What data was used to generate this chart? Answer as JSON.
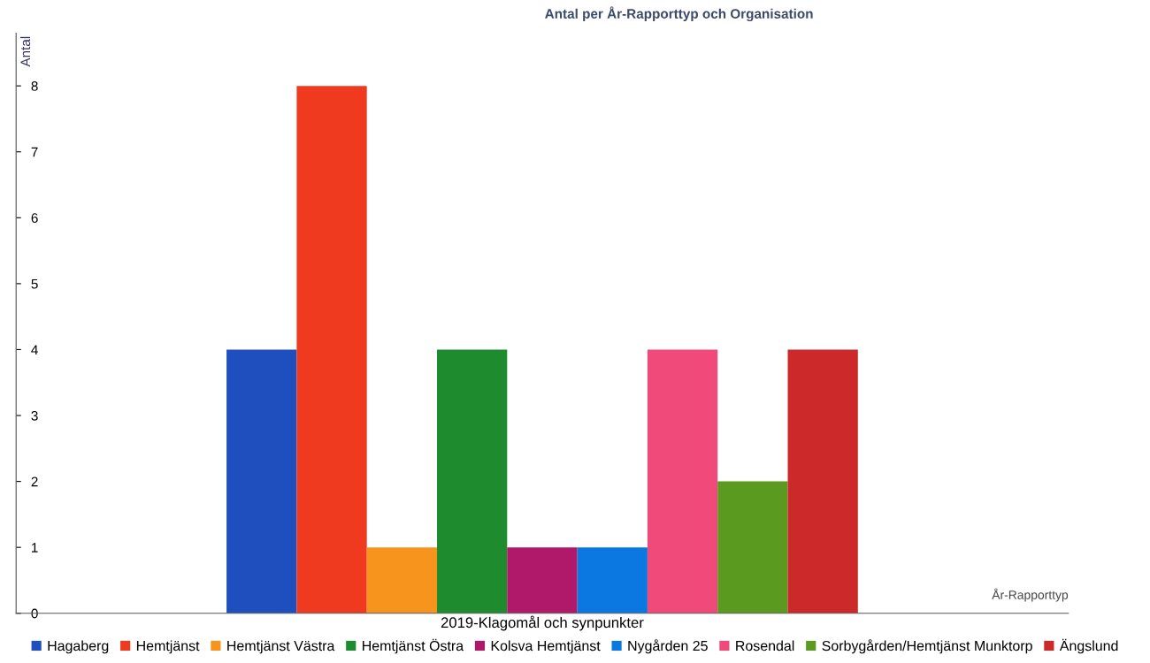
{
  "chart_data": {
    "type": "bar",
    "title": "Antal per År-Rapporttyp och Organisation",
    "xlabel": "År-Rapporttyp",
    "ylabel": "Antal",
    "categories": [
      "2019-Klagomål och synpunkter"
    ],
    "series": [
      {
        "name": "Hagaberg",
        "color": "#1f4fbf",
        "values": [
          4
        ]
      },
      {
        "name": "Hemtjänst",
        "color": "#f03a1f",
        "values": [
          8
        ]
      },
      {
        "name": "Hemtjänst Västra",
        "color": "#f7941d",
        "values": [
          1
        ]
      },
      {
        "name": "Hemtjänst Östra",
        "color": "#1e8c2e",
        "values": [
          4
        ]
      },
      {
        "name": "Kolsva Hemtjänst",
        "color": "#b0186a",
        "values": [
          1
        ]
      },
      {
        "name": "Nygården 25",
        "color": "#0a78e0",
        "values": [
          1
        ]
      },
      {
        "name": "Rosendal",
        "color": "#ef4a7a",
        "values": [
          4
        ]
      },
      {
        "name": "Sorbygården/Hemtjänst Munktorp",
        "color": "#5a9a1e",
        "values": [
          2
        ]
      },
      {
        "name": "Ängslund",
        "color": "#cc2a2a",
        "values": [
          4
        ]
      }
    ],
    "ylim": [
      0,
      8.8
    ],
    "yticks": [
      0,
      1,
      2,
      3,
      4,
      5,
      6,
      7,
      8
    ],
    "grid": false,
    "legend": "bottom"
  }
}
